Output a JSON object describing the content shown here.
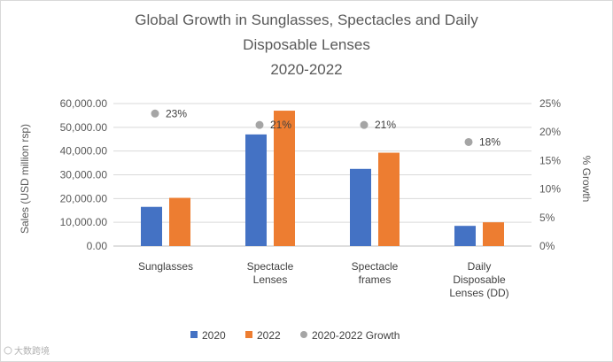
{
  "chart_data": {
    "type": "bar",
    "title": [
      "Global Growth in Sunglasses, Spectacles and Daily",
      "Disposable Lenses",
      "2020-2022"
    ],
    "categories": [
      [
        "Sunglasses"
      ],
      [
        "Spectacle",
        "Lenses"
      ],
      [
        "Spectacle",
        "frames"
      ],
      [
        "Daily",
        "Disposable",
        "Lenses (DD)"
      ]
    ],
    "series": [
      {
        "name": "2020",
        "color": "#4472C4",
        "values": [
          16500,
          47000,
          32500,
          8500
        ]
      },
      {
        "name": "2022",
        "color": "#ED7D31",
        "values": [
          20300,
          57000,
          39300,
          10000
        ]
      }
    ],
    "growth": {
      "name": "2020-2022 Growth",
      "color": "#A5A5A5",
      "values": [
        0.23,
        0.21,
        0.21,
        0.18
      ],
      "labels": [
        "23%",
        "21%",
        "21%",
        "18%"
      ],
      "plotted": [
        0.2325,
        0.2125,
        0.2125,
        0.1825
      ]
    },
    "ylabel": "Sales (USD million rsp)",
    "y2label": "% Growth",
    "ylim": [
      0,
      60000
    ],
    "yticks": [
      "0.00",
      "10,000.00",
      "20,000.00",
      "30,000.00",
      "40,000.00",
      "50,000.00",
      "60,000.00"
    ],
    "y2lim": [
      0,
      0.25
    ],
    "y2ticks": [
      "0%",
      "5%",
      "10%",
      "15%",
      "20%",
      "25%"
    ],
    "legend_position": "bottom"
  },
  "watermark": "大数跨境"
}
